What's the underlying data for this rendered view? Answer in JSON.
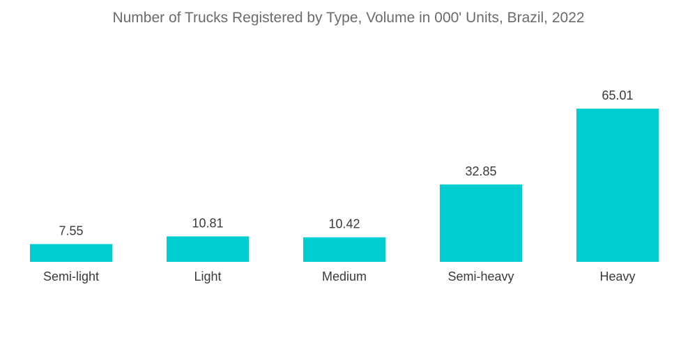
{
  "chart_data": {
    "type": "bar",
    "title": "Number of Trucks Registered by Type, Volume in 000' Units, Brazil, 2022",
    "categories": [
      "Semi-light",
      "Light",
      "Medium",
      "Semi-heavy",
      "Heavy"
    ],
    "values": [
      7.55,
      10.81,
      10.42,
      32.85,
      65.01
    ],
    "data_labels": [
      "7.55",
      "10.81",
      "10.42",
      "32.85",
      "65.01"
    ],
    "xlabel": "",
    "ylabel": "",
    "ylim": [
      0,
      65.01
    ],
    "grid": false,
    "legend": "none",
    "bar_color": "#00CED1"
  }
}
